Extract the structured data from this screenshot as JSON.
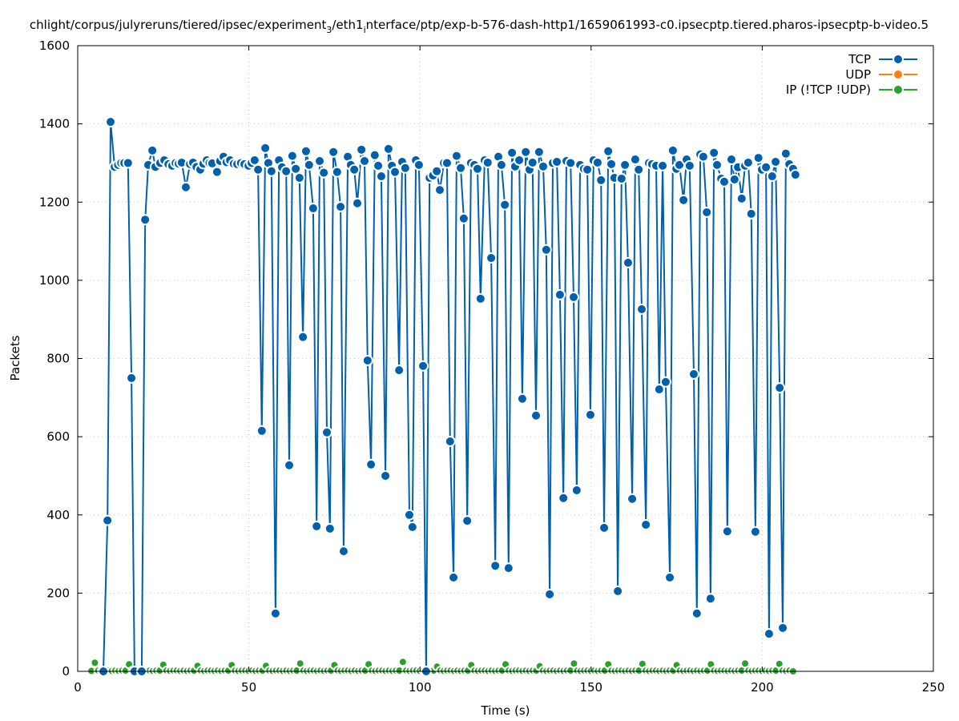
{
  "chart_data": {
    "type": "line",
    "title_parts": [
      "chlight/corpus/julyreruns/tiered/ipsec/experiment",
      "3",
      "/eth1",
      "i",
      "nterface/ptp/exp-b-576-dash-http1/1659061993-c0.ipsecptp.tiered.pharos-ipsecptp-b-video.5"
    ],
    "xlabel": "Time (s)",
    "ylabel": "Packets",
    "xlim": [
      0,
      250
    ],
    "ylim": [
      0,
      1600
    ],
    "xticks": [
      0,
      50,
      100,
      150,
      200,
      250
    ],
    "yticks": [
      0,
      200,
      400,
      600,
      800,
      1000,
      1200,
      1400,
      1600
    ],
    "grid": true,
    "legend_position": "top-right",
    "colors": {
      "TCP": "#0060ad",
      "UDP": "#ff7f0e",
      "IP": "#2ca02c"
    },
    "series": [
      {
        "name": "TCP",
        "x": [
          7.5,
          8.7,
          9.6,
          10.8,
          11.8,
          12.7,
          13.6,
          14.7,
          15.7,
          16.6,
          18.7,
          19.7,
          20.6,
          21.8,
          22.7,
          24.1,
          25.3,
          26.5,
          27.6,
          28.6,
          29.5,
          30.4,
          31.6,
          32.8,
          33.7,
          34.7,
          35.8,
          36.7,
          37.7,
          38.5,
          39.3,
          40.7,
          41.6,
          42.6,
          43.5,
          44.5,
          45.6,
          46.6,
          47.7,
          48.7,
          49.9,
          50.8,
          51.7,
          52.7,
          53.8,
          54.8,
          55.7,
          56.6,
          57.8,
          58.8,
          59.7,
          60.9,
          61.8,
          62.7,
          63.7,
          64.8,
          65.8,
          66.7,
          67.6,
          68.8,
          69.8,
          70.7,
          71.9,
          72.8,
          73.7,
          74.7,
          75.8,
          76.8,
          77.7,
          78.9,
          79.8,
          80.8,
          81.7,
          82.9,
          83.8,
          84.7,
          85.7,
          86.8,
          87.8,
          88.7,
          89.9,
          90.8,
          91.8,
          92.7,
          93.9,
          94.8,
          95.7,
          96.9,
          97.8,
          98.8,
          99.7,
          100.9,
          101.8,
          102.8,
          103.8,
          104.9,
          105.8,
          107.0,
          107.9,
          108.8,
          109.8,
          110.7,
          111.9,
          112.8,
          113.8,
          114.9,
          115.9,
          116.8,
          117.7,
          118.9,
          119.8,
          120.8,
          122.0,
          122.9,
          123.8,
          124.8,
          125.9,
          126.9,
          127.8,
          129.0,
          129.9,
          130.9,
          132.0,
          132.9,
          133.9,
          134.8,
          136.0,
          136.9,
          137.9,
          138.8,
          140.0,
          140.9,
          141.9,
          142.8,
          144.0,
          144.9,
          145.8,
          146.8,
          147.9,
          148.9,
          149.8,
          150.7,
          151.9,
          152.9,
          153.8,
          155.0,
          155.9,
          156.8,
          157.8,
          158.9,
          159.9,
          160.8,
          162.0,
          162.9,
          163.9,
          164.8,
          166.0,
          166.9,
          167.8,
          169.0,
          169.9,
          170.9,
          171.8,
          173.0,
          173.9,
          174.9,
          175.8,
          177.0,
          177.9,
          178.8,
          180.0,
          180.9,
          181.9,
          182.8,
          183.8,
          184.9,
          185.9,
          186.8,
          188.0,
          188.9,
          189.8,
          191.0,
          191.9,
          192.9,
          194.0,
          195.0,
          195.9,
          196.8,
          198.0,
          198.9,
          199.9,
          201.1,
          202.0,
          202.9,
          203.9,
          205.1,
          206.0,
          206.9,
          207.9,
          209.0,
          209.7
        ],
        "y": [
          0,
          386,
          1405,
          1290,
          1295,
          1300,
          1300,
          1300,
          750,
          0,
          0,
          1155,
          1295,
          1332,
          1290,
          1300,
          1307,
          1297,
          1293,
          1300,
          1298,
          1301,
          1238,
          1297,
          1301,
          1290,
          1283,
          1298,
          1307,
          1300,
          1299,
          1277,
          1305,
          1316,
          1302,
          1307,
          1298,
          1297,
          1300,
          1297,
          1293,
          1300,
          1307,
          1283,
          615,
          1338,
          1300,
          1279,
          148,
          1307,
          1289,
          1279,
          527,
          1318,
          1285,
          1262,
          855,
          1330,
          1295,
          1184,
          371,
          1305,
          1275,
          611,
          365,
          1328,
          1277,
          1188,
          307,
          1316,
          1295,
          1283,
          1197,
          1334,
          1305,
          795,
          529,
          1320,
          1293,
          1266,
          500,
          1336,
          1293,
          1277,
          770,
          1303,
          1287,
          400,
          369,
          1307,
          1295,
          781,
          0,
          1262,
          1268,
          1279,
          1231,
          1300,
          1300,
          588,
          240,
          1318,
          1287,
          1158,
          385,
          1300,
          1295,
          1285,
          953,
          1307,
          1301,
          1057,
          270,
          1316,
          1295,
          1193,
          264,
          1326,
          1291,
          1307,
          697,
          1328,
          1283,
          1301,
          654,
          1328,
          1291,
          1078,
          197,
          1300,
          1303,
          963,
          443,
          1305,
          1300,
          957,
          463,
          1295,
          1285,
          1283,
          656,
          1307,
          1301,
          1256,
          367,
          1330,
          1297,
          1262,
          205,
          1260,
          1295,
          1045,
          441,
          1309,
          1283,
          926,
          375,
          1300,
          1297,
          1293,
          721,
          1293,
          740,
          240,
          1332,
          1285,
          1295,
          1205,
          1309,
          1293,
          760,
          148,
          1322,
          1316,
          1174,
          186,
          1326,
          1295,
          1260,
          1252,
          358,
          1309,
          1258,
          1289,
          1209,
          1293,
          1301,
          1170,
          357,
          1313,
          1283,
          1289,
          96,
          1266,
          1303,
          725,
          111,
          1324,
          1297,
          1285,
          1270
        ]
      },
      {
        "name": "UDP",
        "x": [],
        "y": []
      },
      {
        "name": "IP (!TCP  !UDP)",
        "x_start": 4,
        "x_step": 1,
        "y": [
          1,
          22,
          2,
          1,
          2,
          2,
          1,
          2,
          1,
          2,
          2,
          18,
          2,
          1,
          2,
          2,
          1,
          2,
          1,
          2,
          2,
          17,
          2,
          1,
          2,
          2,
          1,
          2,
          1,
          2,
          2,
          14,
          2,
          1,
          2,
          2,
          1,
          2,
          1,
          2,
          2,
          16,
          2,
          1,
          2,
          2,
          1,
          2,
          1,
          2,
          2,
          14,
          2,
          1,
          2,
          2,
          1,
          2,
          1,
          2,
          2,
          20,
          2,
          1,
          2,
          2,
          1,
          2,
          1,
          2,
          2,
          16,
          2,
          1,
          2,
          2,
          1,
          2,
          1,
          2,
          2,
          18,
          2,
          1,
          2,
          2,
          1,
          2,
          1,
          2,
          2,
          24,
          2,
          1,
          2,
          2,
          1,
          2,
          1,
          2,
          2,
          12,
          2,
          1,
          2,
          2,
          1,
          2,
          1,
          2,
          2,
          16,
          2,
          1,
          2,
          2,
          1,
          2,
          1,
          2,
          2,
          18,
          2,
          1,
          2,
          2,
          1,
          2,
          1,
          2,
          2,
          13,
          2,
          1,
          2,
          2,
          1,
          2,
          1,
          2,
          2,
          20,
          2,
          1,
          2,
          2,
          1,
          2,
          1,
          2,
          2,
          18,
          2,
          1,
          2,
          2,
          1,
          2,
          1,
          2,
          2,
          19,
          2,
          1,
          2,
          2,
          1,
          2,
          1,
          2,
          2,
          16,
          2,
          1,
          2,
          2,
          1,
          2,
          1,
          2,
          2,
          18,
          2,
          1,
          2,
          2,
          1,
          2,
          1,
          2,
          2,
          20,
          2,
          1,
          2,
          2,
          1,
          2,
          1,
          2,
          2,
          19,
          2,
          1,
          2,
          0
        ]
      }
    ],
    "legend": [
      "TCP",
      "UDP",
      "IP (!TCP  !UDP)"
    ]
  }
}
